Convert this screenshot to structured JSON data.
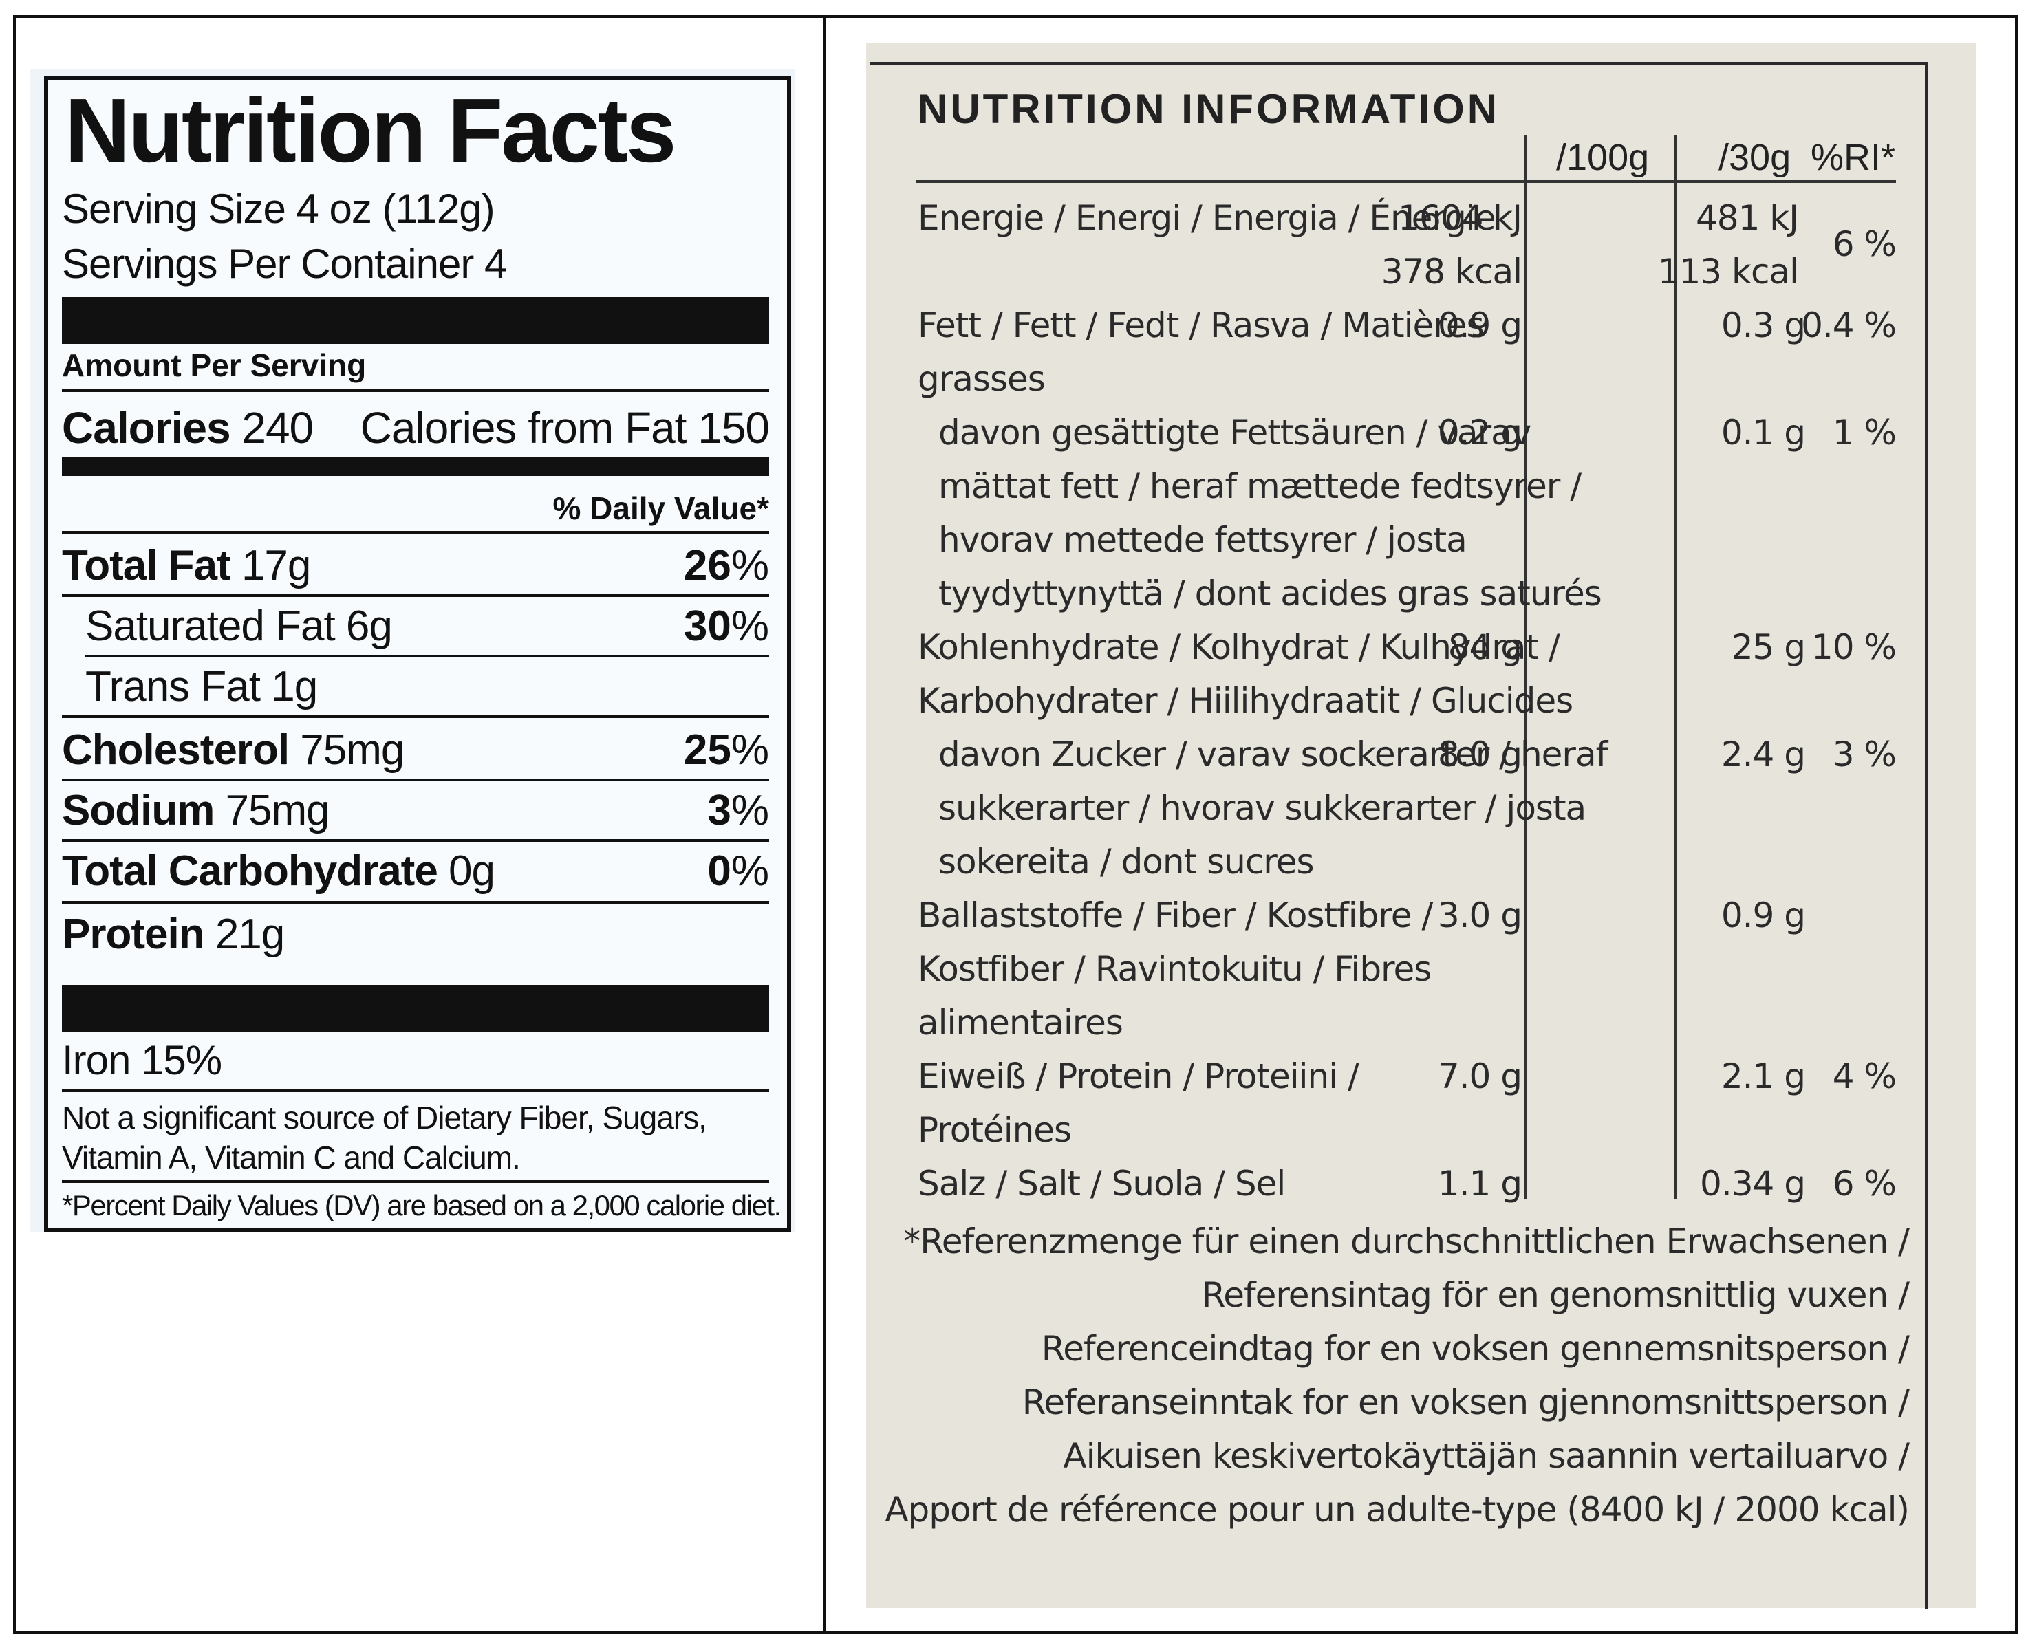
{
  "us_label": {
    "title": "Nutrition Facts",
    "serving_size": "Serving Size 4 oz (112g)",
    "servings_per_container": "Servings Per Container 4",
    "amount_per_serving": "Amount Per Serving",
    "calories_label": "Calories",
    "calories_value": "240",
    "calories_from_fat": "Calories from Fat 150",
    "daily_value_header": "% Daily Value*",
    "rows": [
      {
        "name": "Total Fat",
        "amount": "17g",
        "pct": "26",
        "bold": true
      },
      {
        "name": "Saturated Fat",
        "amount": "6g",
        "pct": "30",
        "bold": false
      },
      {
        "name": "Trans Fat",
        "amount": "1g",
        "pct": "",
        "bold": false
      },
      {
        "name": "Cholesterol",
        "amount": "75mg",
        "pct": "25",
        "bold": true
      },
      {
        "name": "Sodium",
        "amount": "75mg",
        "pct": "3",
        "bold": true
      },
      {
        "name": "Total Carbohydrate",
        "amount": "0g",
        "pct": "0",
        "bold": true
      },
      {
        "name": "Protein",
        "amount": "21g",
        "pct": "",
        "bold": true
      }
    ],
    "pct_sign": "%",
    "iron": "Iron 15%",
    "not_significant_line1": "Not a significant source of Dietary Fiber, Sugars,",
    "not_significant_line2": "Vitamin A, Vitamin C and Calcium.",
    "footnote": "*Percent Daily Values (DV) are based on a 2,000 calorie diet."
  },
  "eu_label": {
    "title": "NUTRITION INFORMATION",
    "col_100g": "/100g",
    "col_30g": "/30g",
    "col_ri": "%RI*",
    "rows": [
      {
        "lines": [
          "Energie / Energi / Energia / Énergie"
        ],
        "per100": [
          "1604 kJ",
          "378 kcal"
        ],
        "per30": [
          "481 kJ",
          "113 kcal"
        ],
        "ri": "6 %"
      },
      {
        "lines": [
          "Fett / Fett / Fedt / Rasva / Matières",
          "grasses"
        ],
        "per100": [
          "0.9 g"
        ],
        "per30": [
          "0.3 g"
        ],
        "ri": "0.4 %"
      },
      {
        "lines": [
          "davon gesättigte Fettsäuren / varav",
          "mättat fett / heraf mættede fedtsyrer /",
          "hvorav mettede fettsyrer / josta",
          "tyydyttynyttä / dont acides gras saturés"
        ],
        "per100": [
          "0.2 g"
        ],
        "per30": [
          "0.1 g"
        ],
        "ri": "1 %"
      },
      {
        "lines": [
          "Kohlenhydrate / Kolhydrat / Kulhydrat /",
          "Karbohydrater / Hiilihydraatit / Glucides"
        ],
        "per100": [
          "84 g"
        ],
        "per30": [
          "25 g"
        ],
        "ri": "10 %"
      },
      {
        "lines": [
          "davon Zucker / varav sockerarter / heraf",
          "sukkerarter / hvorav sukkerarter / josta",
          "sokereita / dont sucres"
        ],
        "per100": [
          "8.0 g"
        ],
        "per30": [
          "2.4 g"
        ],
        "ri": "3 %"
      },
      {
        "lines": [
          "Ballaststoffe / Fiber / Kostfibre /",
          "Kostfiber / Ravintokuitu / Fibres",
          "alimentaires"
        ],
        "per100": [
          "3.0 g"
        ],
        "per30": [
          "0.9 g"
        ],
        "ri": ""
      },
      {
        "lines": [
          "Eiweiß / Protein / Proteiini /",
          "Protéines"
        ],
        "per100": [
          "7.0 g"
        ],
        "per30": [
          "2.1 g"
        ],
        "ri": "4 %"
      },
      {
        "lines": [
          "Salz / Salt / Suola / Sel"
        ],
        "per100": [
          "1.1 g"
        ],
        "per30": [
          "0.34 g"
        ],
        "ri": "6 %"
      }
    ],
    "footnote": [
      "*Referenzmenge für einen durchschnittlichen Erwachsenen /",
      "Referensintag för en genomsnittlig vuxen /",
      "Referenceindtag for en voksen gennemsnitsperson /",
      "Referanseinntak for en voksen gjennomsnittsperson /",
      "Aikuisen keskivertokäyttäjän saannin vertailuarvo /",
      "Apport de référence pour un adulte-type (8400 kJ / 2000 kcal)"
    ]
  }
}
